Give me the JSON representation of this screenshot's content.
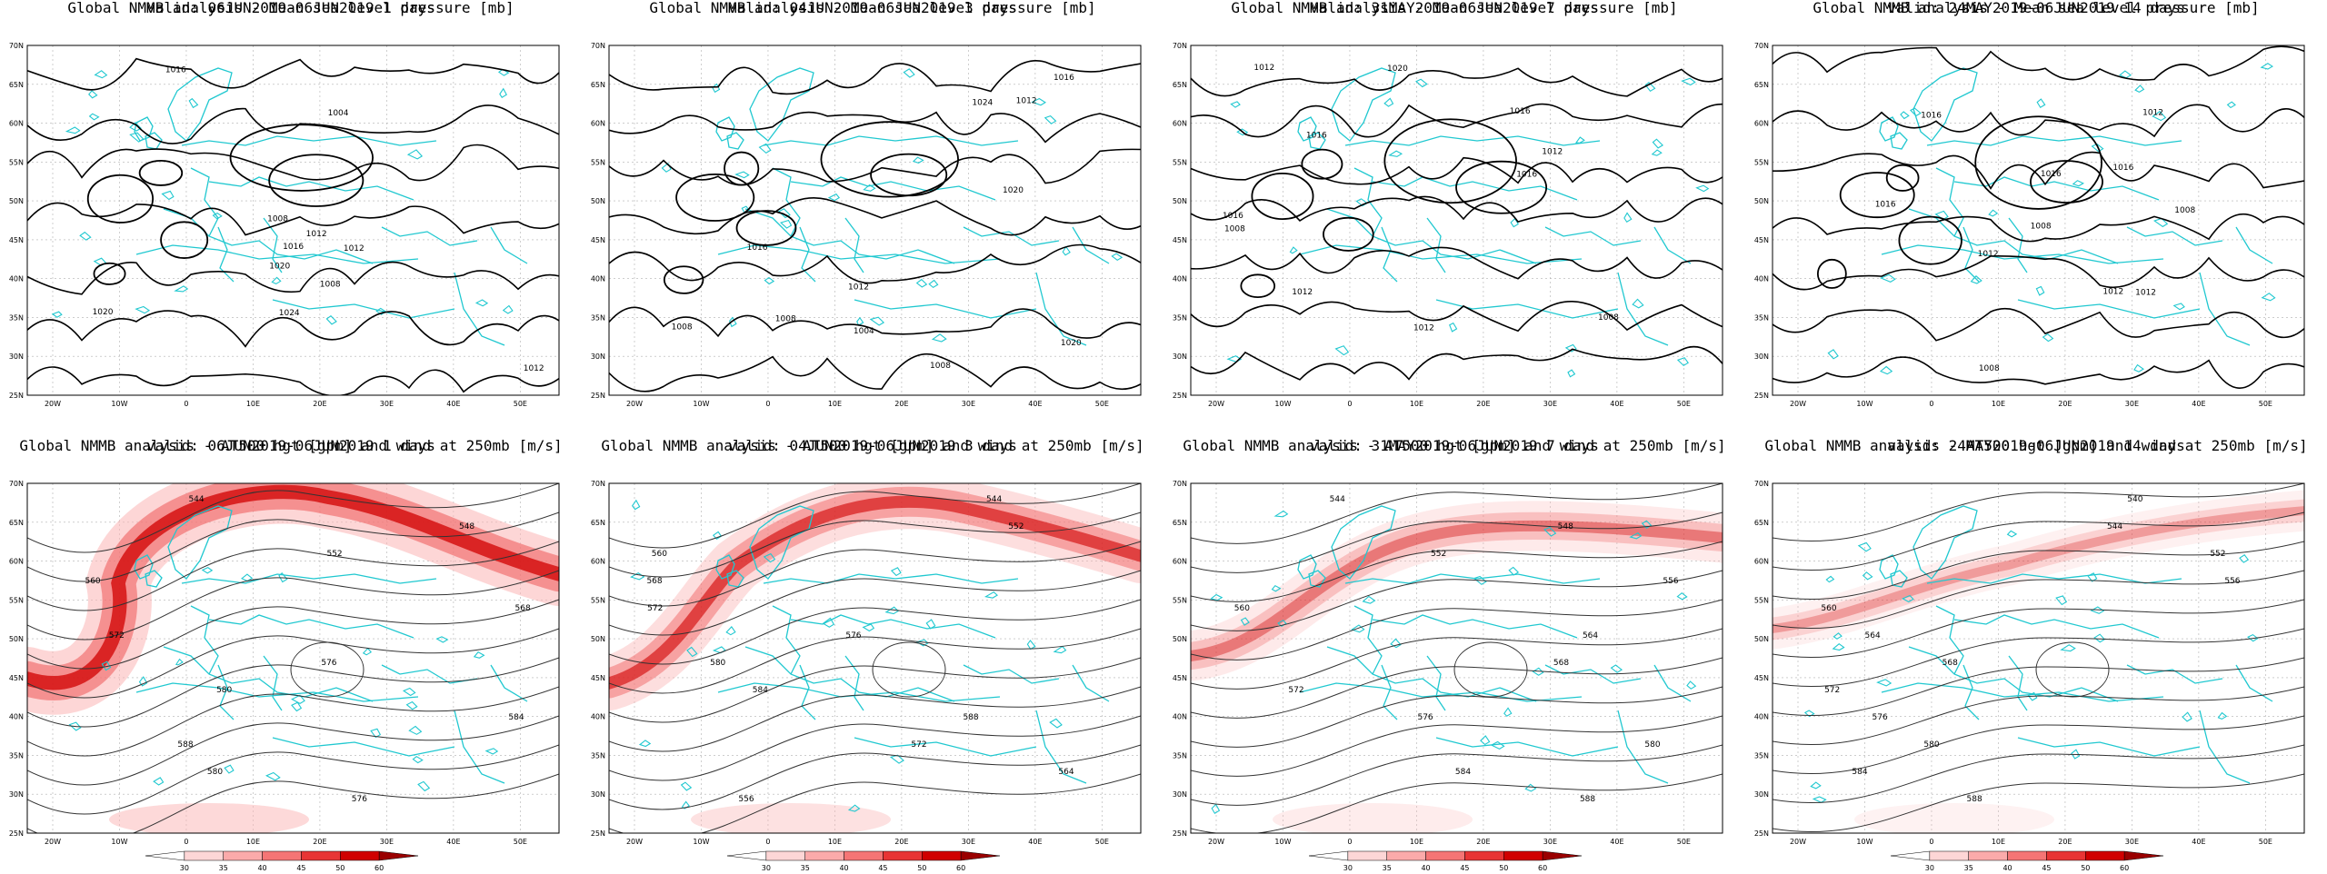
{
  "figure": {
    "columns": [
      {
        "valid": "valid: 06JUN2019-06JUN2019   1 days"
      },
      {
        "valid": "valid: 04JUN2019-06JUN2019   3 days"
      },
      {
        "valid": "valid: 31MAY2019-06JUN2019   7 days"
      },
      {
        "valid": "valid: 24MAY2019-06JUN2019   14 days"
      }
    ],
    "rows": [
      {
        "title": "Global NMMB analysis - Mean sea level pressure [mb]",
        "kind": "mslp"
      },
      {
        "title": "Global NMMB analysis - AT500 hgt [gpm] and wind at 250mb [m/s]",
        "kind": "z500"
      }
    ],
    "lat_ticks": [
      "70N",
      "65N",
      "60N",
      "55N",
      "50N",
      "45N",
      "40N",
      "35N",
      "30N",
      "25N"
    ],
    "lon_ticks": [
      "20W",
      "10W",
      "0",
      "10E",
      "20E",
      "30E",
      "40E",
      "50E"
    ],
    "colorbar": {
      "ticks": [
        "30",
        "35",
        "40",
        "45",
        "50",
        "60"
      ],
      "colors": [
        "#ffffff",
        "#fdd6d6",
        "#fbaaaa",
        "#f57575",
        "#e83535",
        "#d00000",
        "#9a0000"
      ]
    },
    "colors": {
      "coast": "#20c8d0",
      "contour": "#000000",
      "grid": "#b0b0b0"
    }
  },
  "mslp_labels": [
    [
      "1012",
      "1020",
      "1024",
      "1016",
      "1008",
      "1004",
      "1016",
      "1012",
      "1008",
      "1012",
      "1020"
    ],
    [
      "1008",
      "1016",
      "1020",
      "1024",
      "1004",
      "1008",
      "1012",
      "1020",
      "1012",
      "1008",
      "1016"
    ],
    [
      "1016",
      "1008",
      "1012",
      "1016",
      "1020",
      "1016",
      "1012",
      "1008",
      "1012",
      "1016",
      "1012"
    ],
    [
      "1016",
      "1008",
      "1012",
      "1016",
      "1016",
      "1012",
      "1008",
      "1012",
      "1016",
      "1012",
      "1008"
    ]
  ],
  "z500_labels": [
    [
      "544",
      "548",
      "552",
      "560",
      "568",
      "572",
      "576",
      "580",
      "584",
      "588",
      "580",
      "576"
    ],
    [
      "544",
      "552",
      "560",
      "568",
      "572",
      "576",
      "580",
      "584",
      "588",
      "572",
      "564",
      "556"
    ],
    [
      "544",
      "548",
      "552",
      "556",
      "560",
      "564",
      "568",
      "572",
      "576",
      "580",
      "584",
      "588"
    ],
    [
      "540",
      "544",
      "552",
      "556",
      "560",
      "564",
      "568",
      "572",
      "576",
      "580",
      "584",
      "588"
    ]
  ]
}
